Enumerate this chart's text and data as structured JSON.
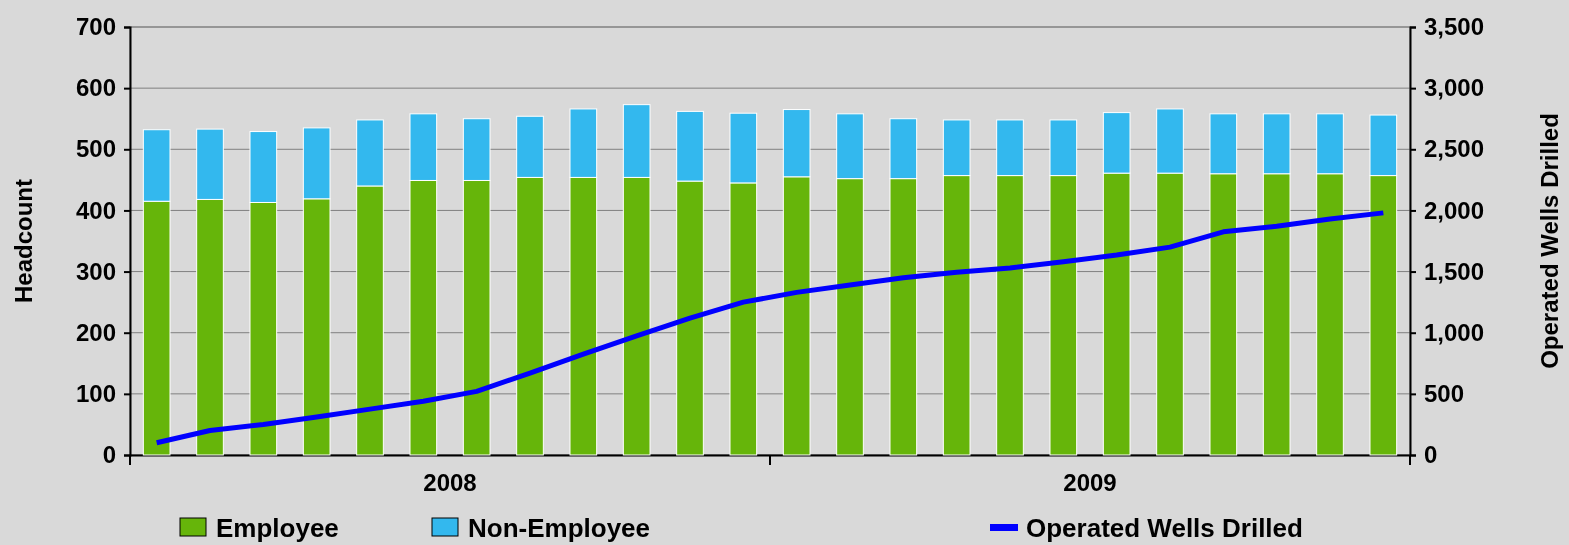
{
  "chart_data": {
    "type": "bar",
    "stacked": true,
    "ylabel": "Headcount",
    "y2label": "Operated Wells Drilled",
    "categories": [
      null,
      null,
      null,
      null,
      null,
      null,
      null,
      null,
      null,
      null,
      null,
      null,
      null,
      null,
      null,
      null,
      null,
      null,
      null,
      null,
      null,
      null,
      null,
      null
    ],
    "series": [
      {
        "name": "Employee",
        "color": "#66b50a",
        "values": [
          415,
          418,
          413,
          419,
          440,
          449,
          449,
          454,
          454,
          454,
          448,
          445,
          455,
          452,
          452,
          457,
          457,
          457,
          461,
          461,
          460,
          460,
          460,
          457
        ]
      },
      {
        "name": "Non-Employee",
        "color": "#33b8ee",
        "values": [
          117,
          115,
          116,
          116,
          108,
          109,
          101,
          100,
          112,
          119,
          114,
          114,
          110,
          106,
          98,
          91,
          91,
          91,
          99,
          105,
          98,
          98,
          98,
          99
        ]
      },
      {
        "name": "Operated Wells Drilled",
        "type": "line",
        "axis": "y2",
        "color": "#0000ff",
        "values": [
          100,
          200,
          250,
          310,
          375,
          440,
          520,
          670,
          825,
          975,
          1120,
          1250,
          1330,
          1390,
          1450,
          1495,
          1530,
          1580,
          1635,
          1700,
          1825,
          1870,
          1930,
          1980
        ]
      }
    ],
    "ylim": [
      0,
      700
    ],
    "yticks": [
      0,
      100,
      200,
      300,
      400,
      500,
      600,
      700
    ],
    "y2lim": [
      0,
      3500
    ],
    "y2ticks": [
      {
        "value": 0,
        "label": "0"
      },
      {
        "value": 500,
        "label": "500"
      },
      {
        "value": 1000,
        "label": "1,000"
      },
      {
        "value": 1500,
        "label": "1,500"
      },
      {
        "value": 2000,
        "label": "2,000"
      },
      {
        "value": 2500,
        "label": "2,500"
      },
      {
        "value": 3000,
        "label": "3,000"
      },
      {
        "value": 3500,
        "label": "3,500"
      }
    ],
    "grid": "y",
    "legend": "bottom",
    "annotations": [
      "2008",
      "2009"
    ]
  }
}
